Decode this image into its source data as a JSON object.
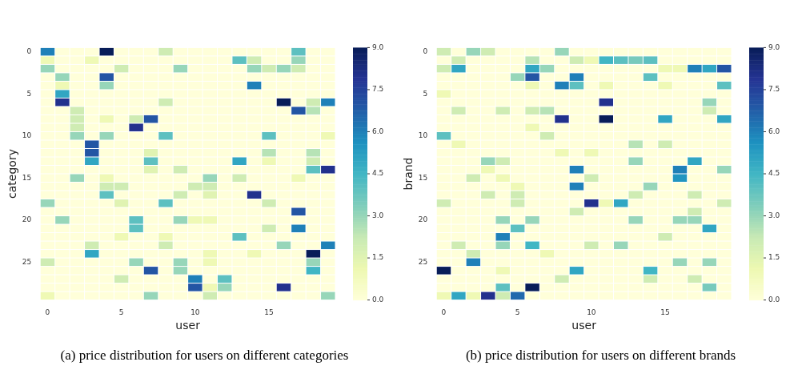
{
  "chart_data": [
    {
      "type": "heatmap",
      "title": "(a) price distribution for users on different categories",
      "xlabel": "user",
      "ylabel": "category",
      "clim": [
        0,
        9
      ],
      "cticks": [
        {
          "value": 0,
          "label": "0.0"
        },
        {
          "value": 1.5,
          "label": "1.5"
        },
        {
          "value": 3,
          "label": "3.0"
        },
        {
          "value": 4.5,
          "label": "4.5"
        },
        {
          "value": 6,
          "label": "6.0"
        },
        {
          "value": 7.5,
          "label": "7.5"
        },
        {
          "value": 9,
          "label": "9.0"
        }
      ],
      "categories": [
        "0",
        null,
        null,
        null,
        null,
        "5",
        null,
        null,
        null,
        null,
        "10",
        null,
        null,
        null,
        null,
        "15",
        null,
        null,
        null,
        null
      ],
      "y_categories": [
        "0",
        null,
        null,
        null,
        null,
        "5",
        null,
        null,
        null,
        null,
        "10",
        null,
        null,
        null,
        null,
        "15",
        null,
        null,
        null,
        null,
        "20",
        null,
        null,
        null,
        null,
        "25",
        null,
        null,
        null,
        null
      ],
      "cells": [
        [
          6,
          0,
          0,
          0,
          9,
          0,
          0,
          0,
          2,
          0,
          0,
          0,
          0,
          0,
          0,
          0,
          0,
          4,
          0,
          0
        ],
        [
          1,
          0,
          0,
          1,
          0,
          0,
          0,
          0,
          0,
          0,
          0,
          0,
          0,
          4,
          2,
          0,
          0,
          3,
          0,
          0
        ],
        [
          3,
          0,
          0,
          0,
          0,
          2,
          0,
          0,
          0,
          3,
          0,
          0,
          0,
          0,
          3,
          2,
          3,
          2,
          0,
          0
        ],
        [
          0,
          3,
          0,
          0,
          7,
          0,
          0,
          0,
          0,
          0,
          0,
          0,
          0,
          0,
          0,
          0,
          0,
          0,
          0,
          0
        ],
        [
          0,
          1,
          0,
          0,
          3,
          0,
          0,
          0,
          0,
          0,
          0,
          0,
          0,
          0,
          6,
          0,
          0,
          0,
          0,
          0
        ],
        [
          0,
          5,
          0,
          0,
          0,
          0,
          0,
          0,
          0,
          0,
          0,
          0,
          0,
          0,
          0,
          0,
          0,
          0,
          0,
          0
        ],
        [
          0,
          8,
          0,
          0,
          0,
          0,
          0,
          0,
          2,
          0,
          0,
          0,
          0,
          0,
          0,
          0,
          9,
          0,
          2,
          6
        ],
        [
          0,
          0,
          2,
          0,
          0,
          0,
          0,
          0,
          0,
          0,
          0,
          0,
          0,
          0,
          0,
          0,
          0,
          7,
          2.5,
          0
        ],
        [
          0,
          0,
          2,
          0,
          1,
          0,
          2,
          7,
          0,
          0,
          0,
          0,
          0,
          0,
          0,
          0,
          0,
          0,
          0,
          0
        ],
        [
          0,
          0,
          2,
          0,
          0,
          0,
          8,
          0,
          0,
          0,
          0,
          0,
          0,
          0,
          0,
          0,
          0,
          0,
          0,
          0
        ],
        [
          0,
          0,
          3,
          0,
          3,
          0,
          0,
          0,
          4,
          0,
          0,
          0,
          0,
          0,
          0,
          4,
          0,
          0,
          0,
          1
        ],
        [
          0,
          0,
          0,
          7,
          0,
          0,
          0,
          0,
          0,
          0,
          0,
          0,
          0,
          0,
          0,
          0,
          0,
          0,
          0,
          0
        ],
        [
          0,
          0,
          0,
          7,
          0,
          0,
          0,
          1.5,
          0,
          0,
          0,
          0,
          0,
          0,
          0,
          2.5,
          0,
          0,
          2.5,
          0
        ],
        [
          0,
          0,
          0,
          5,
          0,
          0,
          0,
          4,
          0,
          0,
          0,
          0,
          0,
          5,
          0,
          1,
          0,
          0,
          2,
          0
        ],
        [
          0,
          0,
          0,
          0,
          0,
          0,
          0,
          1.5,
          0,
          2,
          0,
          0,
          0,
          0,
          0,
          0,
          0,
          0,
          4,
          8
        ],
        [
          0,
          0,
          3,
          0,
          1,
          0,
          0,
          0,
          0,
          0,
          0,
          3,
          0,
          2,
          0,
          0,
          0,
          1,
          0,
          0
        ],
        [
          0,
          0,
          0,
          0,
          2,
          2,
          0,
          0,
          0,
          0,
          2,
          2,
          0,
          0,
          0,
          0,
          0,
          0,
          0,
          0
        ],
        [
          0,
          0,
          0,
          0,
          4,
          0,
          0,
          0,
          0,
          2,
          0,
          1.5,
          0,
          0,
          8,
          0,
          0,
          0,
          0,
          0
        ],
        [
          3,
          0,
          0,
          0,
          0,
          1.5,
          0,
          0,
          4,
          0,
          0,
          0,
          0,
          0,
          0,
          2,
          0,
          0,
          0,
          0
        ],
        [
          0,
          0,
          0,
          0,
          0,
          0,
          0,
          0,
          0,
          0,
          0,
          0,
          0,
          0,
          0,
          0,
          0,
          7,
          0,
          0
        ],
        [
          0,
          3,
          0,
          0,
          0,
          0,
          4,
          0,
          0,
          3,
          1,
          1,
          0,
          0,
          0,
          0,
          0,
          0,
          0,
          0
        ],
        [
          0,
          0,
          0,
          0,
          0,
          0,
          4,
          0,
          0,
          0,
          0,
          0,
          0,
          0,
          0,
          2,
          0,
          6,
          0,
          0
        ],
        [
          0,
          0,
          0,
          0,
          0,
          1,
          0,
          0,
          1,
          0,
          0,
          0,
          0,
          4,
          0,
          0,
          0,
          0,
          0,
          0
        ],
        [
          0,
          0,
          0,
          2,
          0,
          0,
          0,
          0,
          2,
          0,
          0,
          0,
          0,
          0,
          0,
          0,
          3,
          0,
          0,
          6
        ],
        [
          0,
          0,
          0,
          5,
          0,
          0,
          0,
          0,
          0,
          0,
          0,
          1,
          0,
          0,
          1,
          0,
          0,
          0,
          9,
          0
        ],
        [
          2,
          0,
          0,
          0,
          0,
          0,
          3,
          0,
          0,
          3,
          0,
          1,
          0,
          0,
          0,
          0,
          0,
          0,
          3,
          0
        ],
        [
          0,
          0,
          0,
          0,
          0,
          0,
          0,
          7,
          0,
          3,
          0,
          0,
          0,
          0,
          0,
          0,
          0,
          0,
          4.5,
          0
        ],
        [
          0,
          0,
          0,
          0,
          0,
          2,
          0,
          0,
          0,
          0,
          6,
          0,
          4,
          0,
          0,
          0,
          0,
          0,
          0,
          0
        ],
        [
          0,
          0,
          0,
          0,
          0,
          0,
          0,
          0,
          0,
          0,
          7,
          1,
          3,
          0,
          0,
          0,
          8,
          0,
          0,
          0
        ],
        [
          1,
          0,
          0,
          0,
          0,
          0,
          0,
          3,
          0,
          0,
          0,
          2,
          0,
          0,
          0,
          0,
          0,
          0,
          0,
          3
        ]
      ]
    },
    {
      "type": "heatmap",
      "title": "(b) price distribution for users on different brands",
      "xlabel": "user",
      "ylabel": "brand",
      "clim": [
        0,
        9
      ],
      "cticks": [
        {
          "value": 0,
          "label": "0.0"
        },
        {
          "value": 1.5,
          "label": "1.5"
        },
        {
          "value": 3,
          "label": "3.0"
        },
        {
          "value": 4.5,
          "label": "4.5"
        },
        {
          "value": 6,
          "label": "6.0"
        },
        {
          "value": 7.5,
          "label": "7.5"
        },
        {
          "value": 9,
          "label": "9.0"
        }
      ],
      "categories": [
        "0",
        null,
        null,
        null,
        null,
        "5",
        null,
        null,
        null,
        null,
        "10",
        null,
        null,
        null,
        null,
        "15",
        null,
        null,
        null,
        null
      ],
      "y_categories": [
        "0",
        null,
        null,
        null,
        null,
        "5",
        null,
        null,
        null,
        null,
        "10",
        null,
        null,
        null,
        null,
        "15",
        null,
        null,
        null,
        null,
        "20",
        null,
        null,
        null,
        null,
        "25",
        null,
        null,
        null,
        null
      ],
      "cells": [
        [
          2,
          0,
          3,
          2,
          0,
          0,
          0,
          0,
          3,
          0,
          0,
          0,
          0,
          0,
          0,
          0,
          0,
          0,
          0,
          0
        ],
        [
          0,
          2,
          0,
          0,
          0,
          0,
          2.5,
          0,
          0,
          2,
          1,
          4.5,
          4,
          3.5,
          4,
          0,
          0,
          0,
          0,
          0
        ],
        [
          2,
          5,
          0,
          0,
          0,
          0,
          5,
          3,
          0,
          0,
          0,
          0,
          0,
          0,
          0,
          1,
          1,
          6,
          5,
          7
        ],
        [
          0,
          0,
          0,
          0,
          0,
          3,
          7,
          0,
          0,
          6,
          0,
          0,
          0,
          0,
          4,
          0,
          0,
          0,
          0,
          0
        ],
        [
          0,
          0,
          0,
          0,
          0,
          0,
          1,
          0,
          6,
          4,
          0,
          1,
          0,
          0,
          0,
          1,
          0,
          0,
          0,
          4
        ],
        [
          1,
          0,
          0,
          0,
          0,
          0,
          0,
          0,
          0,
          0,
          0,
          0,
          0,
          0,
          0,
          0,
          0,
          0,
          0,
          0
        ],
        [
          0,
          0,
          0,
          0,
          0,
          0,
          0,
          0,
          0,
          0,
          0,
          8,
          0,
          0,
          0,
          0,
          0,
          0,
          3,
          0
        ],
        [
          0,
          2,
          0,
          0,
          2,
          0,
          2,
          2.5,
          0,
          0,
          0,
          0,
          0,
          0,
          0,
          0,
          0,
          0,
          2,
          0
        ],
        [
          0,
          0,
          0,
          0,
          0,
          0,
          0,
          0,
          8,
          0,
          0,
          9,
          0,
          0,
          0,
          5,
          0,
          0,
          0,
          5
        ],
        [
          0,
          0,
          0,
          0,
          0,
          0,
          1,
          0,
          0,
          0,
          0,
          0,
          0,
          0,
          0,
          0,
          0,
          0,
          0,
          0
        ],
        [
          4,
          0,
          0,
          0,
          0,
          0,
          0,
          2,
          0,
          0,
          0,
          0,
          0,
          0,
          0,
          0,
          0,
          0,
          0,
          0
        ],
        [
          0,
          1,
          0,
          0,
          0,
          0,
          0,
          0,
          0,
          0,
          0,
          0,
          0,
          2.5,
          0,
          2,
          0,
          0,
          0,
          0
        ],
        [
          0,
          0,
          0,
          0,
          0,
          0,
          0,
          0,
          1,
          0,
          1,
          0,
          0,
          0,
          0,
          0,
          0,
          0,
          0,
          0
        ],
        [
          0,
          0,
          0,
          3,
          2,
          0,
          0,
          0,
          0,
          0,
          0,
          0,
          0,
          3,
          0,
          0,
          0,
          5,
          0,
          0
        ],
        [
          0,
          0,
          0,
          1,
          0,
          0,
          0,
          0,
          0,
          6,
          0,
          0,
          0,
          0,
          0,
          0,
          6,
          0,
          0,
          3
        ],
        [
          0,
          0,
          2,
          0,
          1,
          0,
          0,
          0,
          0,
          0,
          2,
          0,
          0,
          0,
          0,
          0,
          5.5,
          0,
          0,
          0
        ],
        [
          0,
          0,
          0,
          0,
          0,
          1,
          0,
          0,
          0,
          6,
          0,
          0,
          0,
          0,
          3,
          0,
          0,
          0,
          0,
          0
        ],
        [
          0,
          0,
          0,
          2,
          0,
          2,
          0,
          0,
          0,
          0,
          0,
          0,
          0,
          2,
          0,
          0,
          0,
          2,
          0,
          0
        ],
        [
          2,
          0,
          0,
          0,
          0,
          2,
          0,
          0,
          0,
          0,
          8,
          1,
          5,
          0,
          0,
          0,
          0,
          0,
          0,
          2
        ],
        [
          0,
          0,
          0,
          0,
          0,
          0,
          0,
          0,
          0,
          2,
          0,
          0,
          0,
          0,
          0,
          0,
          0,
          2,
          0,
          0
        ],
        [
          0,
          0,
          0,
          0,
          3,
          0,
          3,
          0,
          0,
          0,
          0,
          0,
          0,
          3,
          0,
          0,
          3,
          3,
          0,
          0
        ],
        [
          0,
          0,
          0,
          0,
          0,
          4,
          0,
          0,
          0,
          0,
          0,
          0,
          0,
          0,
          0,
          0,
          0,
          0,
          5,
          0
        ],
        [
          0,
          0,
          0,
          0,
          6,
          0,
          0,
          0,
          0,
          0,
          0,
          0,
          0,
          0,
          0,
          2,
          0,
          0,
          0,
          0
        ],
        [
          0,
          2,
          0,
          0,
          3,
          0,
          4.5,
          0,
          0,
          0,
          2,
          0,
          3,
          0,
          0,
          0,
          0,
          0,
          0,
          0
        ],
        [
          0,
          0,
          2,
          0,
          0,
          0,
          0,
          1,
          0,
          0,
          0,
          0,
          0,
          0,
          0,
          0,
          0,
          0,
          0,
          0
        ],
        [
          0,
          0,
          6,
          0,
          0,
          0,
          0,
          0,
          0,
          0,
          0,
          0,
          0,
          0,
          0,
          0,
          3,
          0,
          3,
          0
        ],
        [
          9,
          0,
          0,
          0,
          1,
          0,
          0,
          0,
          0,
          5,
          0,
          0,
          0,
          0,
          4.5,
          0,
          0,
          0,
          0,
          0
        ],
        [
          0,
          0,
          0,
          0,
          0,
          0,
          0,
          0,
          2,
          0,
          0,
          0,
          0,
          0,
          2,
          0,
          0,
          2,
          0,
          0
        ],
        [
          0,
          0,
          0,
          0,
          4,
          0,
          9,
          0,
          0,
          0,
          0,
          0,
          0,
          0,
          0,
          0,
          0,
          0,
          3.5,
          0
        ],
        [
          1,
          5,
          1,
          8,
          2,
          6.5,
          0,
          0,
          0,
          0,
          0,
          0,
          0,
          0,
          0,
          0,
          0,
          0,
          0,
          0
        ]
      ]
    }
  ]
}
